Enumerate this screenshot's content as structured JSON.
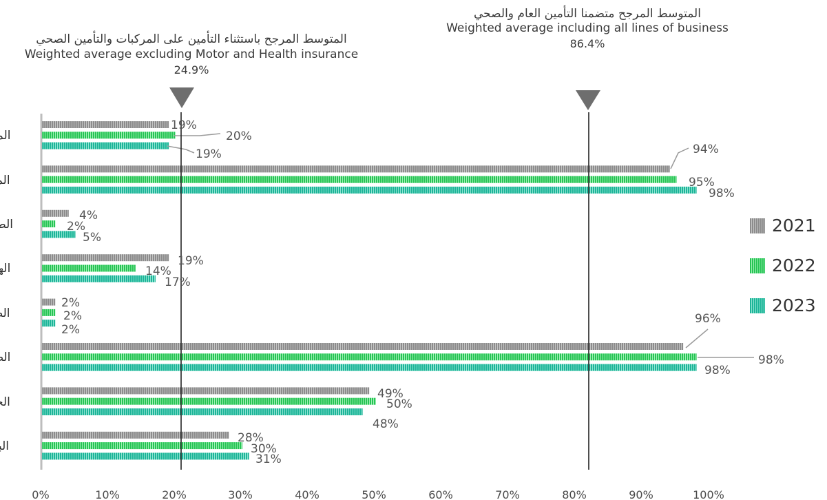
{
  "annotations": [
    {
      "arabic": "المتوسط المرجح باستثناء التأمين على المركبات والتأمين الصحي",
      "english": "Weighted average excluding Motor and Health insurance",
      "value_label": "24.9%",
      "value": 24.9
    },
    {
      "arabic": "المتوسط المرجح متضمنا التأمين العام والصحي",
      "english": "Weighted average including all lines of business",
      "value_label": "86.4%",
      "value": 86.4
    }
  ],
  "colors": {
    "2021": "#8c8c8c",
    "2022": "#2ecc5c",
    "2023": "#1fb89c",
    "axis": "#bdbdbd",
    "refline": "#222222",
    "marker": "#6e6e6e"
  },
  "chart_data": {
    "type": "bar",
    "orientation": "horizontal",
    "categories": [
      "المم",
      "المر",
      "الطي",
      "الهن",
      "الطا",
      "الص",
      "الحو",
      "البح"
    ],
    "series": [
      {
        "name": "2021",
        "values": [
          19,
          94,
          4,
          19,
          2,
          96,
          49,
          28
        ]
      },
      {
        "name": "2022",
        "values": [
          20,
          95,
          2,
          14,
          2,
          98,
          50,
          30
        ]
      },
      {
        "name": "2023",
        "values": [
          19,
          98,
          5,
          17,
          2,
          98,
          48,
          31
        ]
      }
    ],
    "data_labels": [
      [
        "19%",
        "20%",
        "19%"
      ],
      [
        "94%",
        "95%",
        "98%"
      ],
      [
        "4%",
        "2%",
        "5%"
      ],
      [
        "19%",
        "14%",
        "17%"
      ],
      [
        "2%",
        "2%",
        "2%"
      ],
      [
        "96%",
        "98%",
        "98%"
      ],
      [
        "49%",
        "50%",
        "48%"
      ],
      [
        "28%",
        "30%",
        "31%"
      ]
    ],
    "x_ticks": [
      "0%",
      "10%",
      "20%",
      "30%",
      "40%",
      "50%",
      "60%",
      "70%",
      "80%",
      "90%",
      "100%"
    ],
    "xlim": [
      0,
      100
    ],
    "reference_lines": [
      24.9,
      86.4
    ],
    "legend": [
      "2021",
      "2022",
      "2023"
    ],
    "legend_position": "right",
    "grid": false
  }
}
